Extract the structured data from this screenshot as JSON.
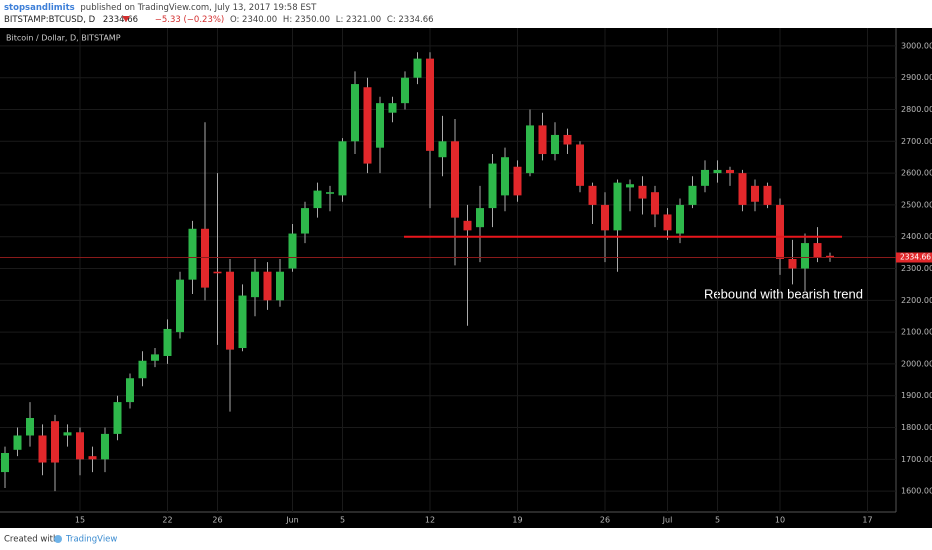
{
  "header": {
    "author": "stopsandlimits",
    "published": "published on TradingView.com, July 13, 2017 19:58 EST",
    "symbol": "BITSTAMP:BTCUSD, D",
    "last": "2334.66",
    "change": "−5.33 (−0.23%)",
    "open": "O: 2340.00",
    "high": "H: 2350.00",
    "low": "L: 2321.00",
    "close": "C: 2334.66"
  },
  "footer": {
    "created": "Created with",
    "brand": "TradingView"
  },
  "chart_data": {
    "type": "candlestick",
    "title": "Bitcoin / Dollar, D, BITSTAMP",
    "categories": [
      null,
      null,
      null,
      null,
      null,
      null,
      "15",
      null,
      null,
      null,
      null,
      null,
      null,
      "22",
      null,
      null,
      null,
      "26",
      null,
      null,
      null,
      null,
      null,
      "Jun",
      null,
      null,
      null,
      "5",
      null,
      null,
      null,
      null,
      null,
      null,
      "12",
      null,
      null,
      null,
      null,
      null,
      null,
      "19",
      null,
      null,
      null,
      null,
      null,
      null,
      "26",
      null,
      null,
      null,
      null,
      "Jul",
      null,
      null,
      null,
      "5",
      null,
      null,
      null,
      null,
      "10",
      null,
      null,
      null,
      null,
      null,
      null,
      "17"
    ],
    "open": [
      1660,
      1730,
      1775,
      1775,
      1820,
      1775,
      1785,
      1710,
      1700,
      1780,
      1880,
      1955,
      2010,
      2025,
      2100,
      2265,
      2425,
      2290,
      2290,
      2050,
      2210,
      2290,
      2200,
      2300,
      2410,
      2490,
      2535,
      2530,
      2700,
      2870,
      2680,
      2790,
      2820,
      2900,
      2960,
      2650,
      2700,
      2450,
      2430,
      2490,
      2530,
      2620,
      2600,
      2750,
      2660,
      2720,
      2690,
      2560,
      2500,
      2420,
      2555,
      2560,
      2540,
      2470,
      2410,
      2500,
      2560,
      2600,
      2610,
      2600,
      2560,
      2560,
      2500,
      2330,
      2300,
      2380,
      2340,
      null,
      null,
      null
    ],
    "high": [
      1740,
      1800,
      1880,
      1810,
      1840,
      1810,
      1800,
      1740,
      1800,
      1900,
      1970,
      2040,
      2050,
      2140,
      2290,
      2450,
      2760,
      2600,
      2330,
      2250,
      2330,
      2320,
      2330,
      2440,
      2510,
      2570,
      2560,
      2710,
      2920,
      2900,
      2840,
      2840,
      2920,
      2980,
      2980,
      2780,
      2770,
      2500,
      2560,
      2660,
      2680,
      2640,
      2800,
      2790,
      2760,
      2740,
      2700,
      2570,
      2540,
      2580,
      2580,
      2590,
      2560,
      2490,
      2520,
      2590,
      2640,
      2640,
      2620,
      2610,
      2580,
      2570,
      2520,
      2390,
      2410,
      2430,
      2350,
      null,
      null,
      null
    ],
    "low": [
      1610,
      1710,
      1740,
      1650,
      1600,
      1740,
      1650,
      1660,
      1660,
      1760,
      1860,
      1930,
      1990,
      2000,
      2080,
      2220,
      2200,
      2060,
      1850,
      2040,
      2150,
      2170,
      2180,
      2290,
      2380,
      2460,
      2480,
      2510,
      2660,
      2600,
      2600,
      2760,
      2800,
      2880,
      2490,
      2590,
      2310,
      2120,
      2320,
      2430,
      2480,
      2510,
      2590,
      2640,
      2640,
      2660,
      2540,
      2440,
      2320,
      2290,
      2480,
      2470,
      2430,
      2390,
      2380,
      2490,
      2540,
      2570,
      2560,
      2480,
      2480,
      2490,
      2280,
      2250,
      2230,
      2320,
      2321,
      null,
      null,
      null
    ],
    "close": [
      1720,
      1775,
      1830,
      1690,
      1690,
      1785,
      1700,
      1700,
      1780,
      1880,
      1955,
      2010,
      2030,
      2110,
      2265,
      2425,
      2240,
      2285,
      2045,
      2215,
      2290,
      2200,
      2290,
      2410,
      2490,
      2545,
      2540,
      2700,
      2880,
      2630,
      2820,
      2820,
      2900,
      2960,
      2670,
      2700,
      2460,
      2420,
      2490,
      2630,
      2650,
      2530,
      2750,
      2660,
      2720,
      2690,
      2560,
      2500,
      2420,
      2570,
      2565,
      2520,
      2470,
      2420,
      2500,
      2560,
      2610,
      2610,
      2600,
      2500,
      2510,
      2500,
      2330,
      2300,
      2380,
      2335,
      2334.66,
      null,
      null,
      null
    ],
    "up_color": "#2eb84b",
    "down_color": "#e2282b",
    "ylim": [
      1525,
      3050
    ],
    "yticks": [
      {
        "value": 1600,
        "label": "1600.00"
      },
      {
        "value": 1700,
        "label": "1700.00"
      },
      {
        "value": 1800,
        "label": "1800.00"
      },
      {
        "value": 1900,
        "label": "1900.00"
      },
      {
        "value": 2000,
        "label": "2000.00"
      },
      {
        "value": 2100,
        "label": "2100.00"
      },
      {
        "value": 2200,
        "label": "2200.00"
      },
      {
        "value": 2300,
        "label": "2300.00"
      },
      {
        "value": 2400,
        "label": "2400.00"
      },
      {
        "value": 2500,
        "label": "2500.00"
      },
      {
        "value": 2600,
        "label": "2600.00"
      },
      {
        "value": 2700,
        "label": "2700.00"
      },
      {
        "value": 2800,
        "label": "2800.00"
      },
      {
        "value": 2900,
        "label": "2900.00"
      },
      {
        "value": 3000,
        "label": "3000.00"
      }
    ],
    "grid": true,
    "hline": {
      "value": 2400,
      "color": "#e8161c"
    },
    "annotation": "Rebound with bearish trend"
  }
}
